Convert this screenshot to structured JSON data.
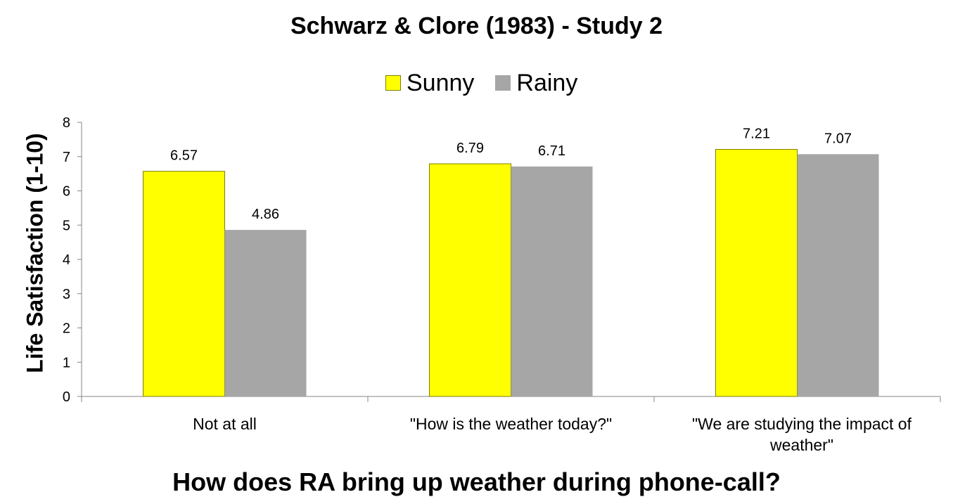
{
  "chart_data": {
    "type": "bar",
    "title": "Schwarz & Clore (1983) - Study 2",
    "xlabel": "How does RA bring up weather during phone-call?",
    "ylabel": "Life Satisfaction (1-10)",
    "categories": [
      "Not at all",
      "\"How is the weather today?\"",
      "\"We are studying the impact of weather\""
    ],
    "series": [
      {
        "name": "Sunny",
        "values": [
          6.57,
          6.79,
          7.21
        ],
        "labels": [
          "6.57",
          "6.79",
          "7.21"
        ],
        "color": "#ffff00"
      },
      {
        "name": "Rainy",
        "values": [
          4.86,
          6.71,
          7.07
        ],
        "labels": [
          "4.86",
          "6.71",
          "7.07"
        ],
        "color": "#a6a6a6"
      }
    ],
    "ylim": [
      0,
      8
    ],
    "yticks": [
      "0",
      "1",
      "2",
      "3",
      "4",
      "5",
      "6",
      "7",
      "8"
    ],
    "grid": false,
    "legend_position": "top"
  }
}
